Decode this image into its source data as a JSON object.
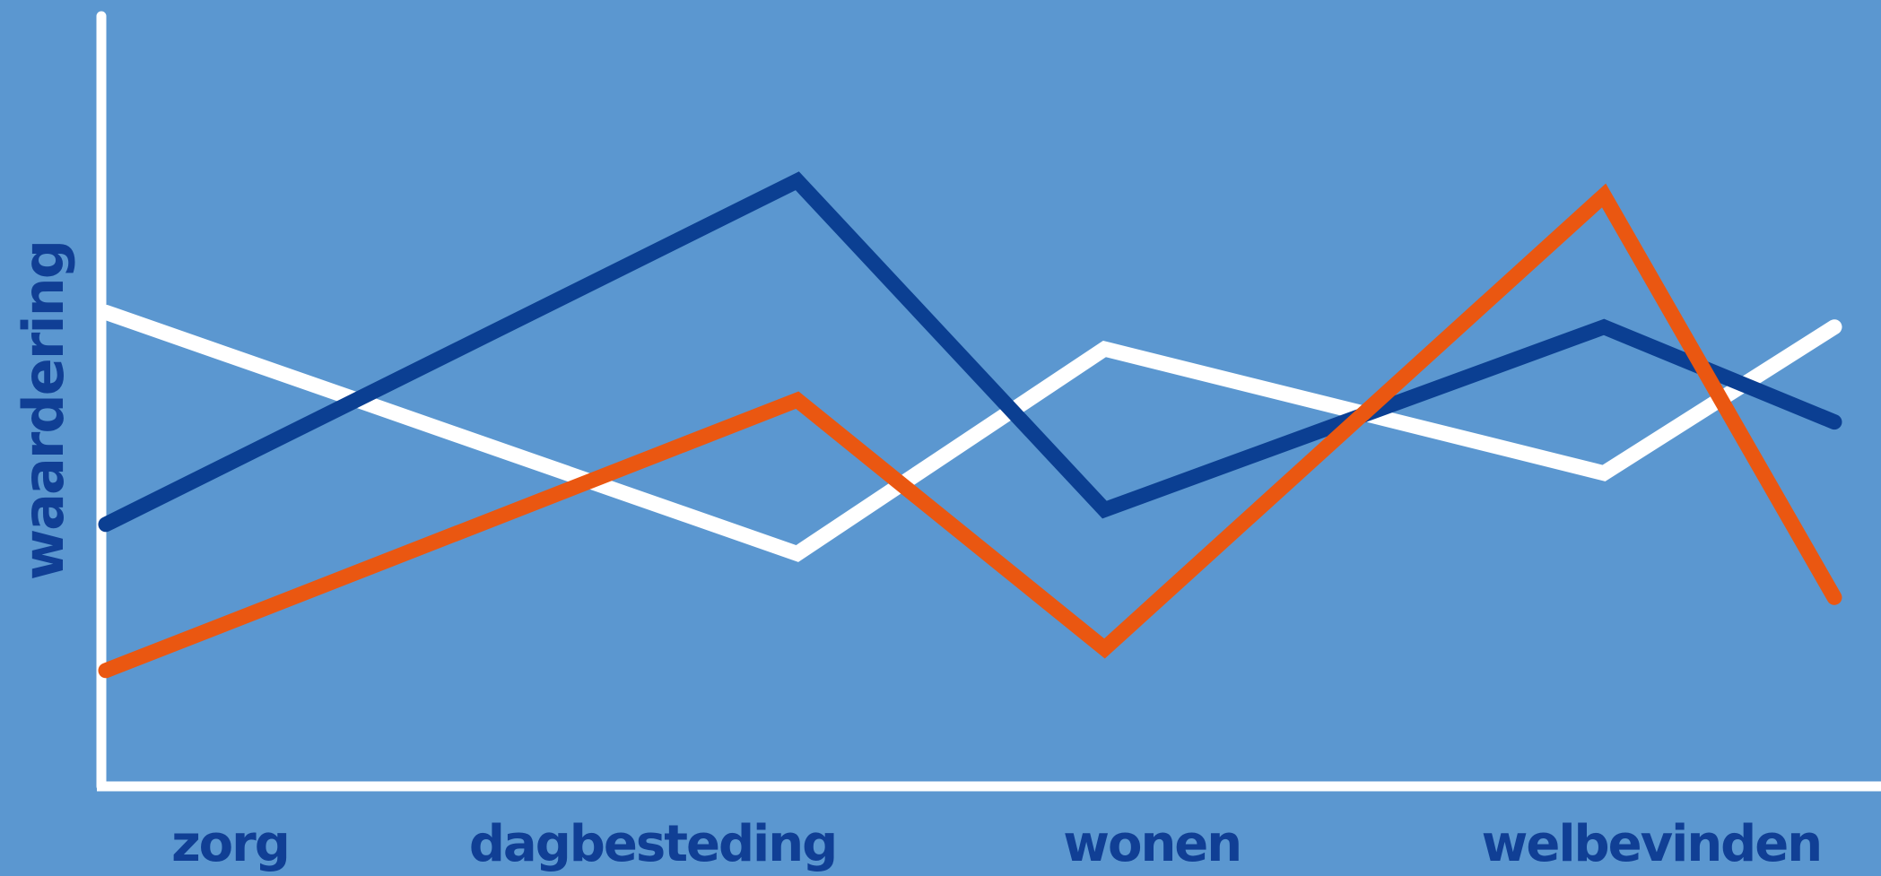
{
  "chart_data": {
    "type": "line",
    "title": "",
    "xlabel": "",
    "ylabel": "waardering",
    "grid": false,
    "legend": "none",
    "y_ticks_shown": false,
    "ylim": [
      0,
      10
    ],
    "x": [
      0,
      1,
      1.8,
      2.6,
      3.9,
      4.5
    ],
    "categories": [
      {
        "label": "zorg",
        "x": 0.3
      },
      {
        "label": "dagbesteding",
        "x": 1.4
      },
      {
        "label": "wonen",
        "x": 2.7
      },
      {
        "label": "welbevinden",
        "x": 4.0
      }
    ],
    "series": [
      {
        "color": "#ffffff",
        "points": [
          [
            0,
            6.4
          ],
          [
            1.8,
            3.1
          ],
          [
            2.6,
            5.9
          ],
          [
            3.9,
            4.2
          ],
          [
            4.5,
            6.2
          ]
        ]
      },
      {
        "color": "#0b3f92",
        "points": [
          [
            0,
            3.5
          ],
          [
            1.8,
            8.2
          ],
          [
            2.6,
            3.7
          ],
          [
            3.9,
            6.2
          ],
          [
            4.5,
            4.9
          ]
        ]
      },
      {
        "color": "#ea5711",
        "points": [
          [
            0,
            1.5
          ],
          [
            1.8,
            5.2
          ],
          [
            2.6,
            1.8
          ],
          [
            3.9,
            8.0
          ],
          [
            4.5,
            2.5
          ]
        ]
      }
    ],
    "colors": {
      "background": "#5b97d0",
      "axis": "#ffffff",
      "label_text": "#103f95"
    }
  }
}
